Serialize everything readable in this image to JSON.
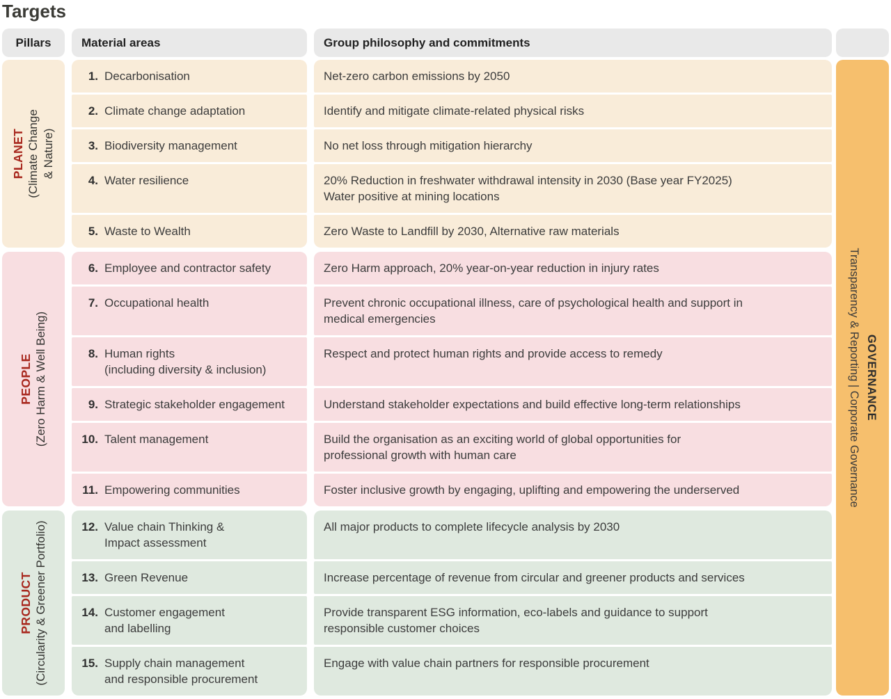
{
  "title": "Targets",
  "headers": {
    "pillars": "Pillars",
    "materials": "Material areas",
    "commitments": "Group philosophy and commitments"
  },
  "governance": {
    "title": "GOVERNANCE",
    "subtitle": "Transparency & Reporting  |  Corporate Governance"
  },
  "colors": {
    "planet": "#F9ECD9",
    "people": "#F8DEE1",
    "product": "#DFE9DF",
    "governance": "#F6BF6D",
    "header_gray": "#E9E9E9",
    "pillar_name_red": "#A8281E",
    "body_text": "#3C3C3C"
  },
  "pillars": [
    {
      "name": "PLANET",
      "subtitle": "(Climate Change\n& Nature)",
      "theme": "planet",
      "rows": [
        {
          "num": "1.",
          "area": "Decarbonisation",
          "commitment": "Net-zero carbon emissions by 2050"
        },
        {
          "num": "2.",
          "area": "Climate change adaptation",
          "commitment": "Identify and mitigate climate-related physical risks"
        },
        {
          "num": "3.",
          "area": "Biodiversity management",
          "commitment": "No net loss through mitigation hierarchy"
        },
        {
          "num": "4.",
          "area": "Water resilience",
          "commitment": "20% Reduction in freshwater withdrawal intensity in 2030 (Base year FY2025)\nWater positive at mining locations"
        },
        {
          "num": "5.",
          "area": "Waste to Wealth",
          "commitment": "Zero Waste to Landfill by 2030, Alternative raw materials"
        }
      ]
    },
    {
      "name": "PEOPLE",
      "subtitle": "(Zero Harm & Well Being)",
      "theme": "people",
      "rows": [
        {
          "num": "6.",
          "area": "Employee and contractor safety",
          "commitment": "Zero Harm approach, 20% year-on-year reduction in injury rates"
        },
        {
          "num": "7.",
          "area": "Occupational health",
          "commitment": "Prevent chronic occupational illness, care of psychological health and support in\nmedical emergencies"
        },
        {
          "num": "8.",
          "area": "Human rights\n(including diversity & inclusion)",
          "commitment": "Respect and protect human rights and provide access to remedy"
        },
        {
          "num": "9.",
          "area": "Strategic stakeholder engagement",
          "commitment": "Understand stakeholder expectations and build effective long-term relationships"
        },
        {
          "num": "10.",
          "area": "Talent management",
          "commitment": "Build the organisation as an exciting world of global opportunities for\nprofessional growth with human care"
        },
        {
          "num": "11.",
          "area": "Empowering communities",
          "commitment": "Foster inclusive growth by engaging, uplifting and empowering the underserved"
        }
      ]
    },
    {
      "name": "PRODUCT",
      "subtitle": "(Circularity & Greener Portfolio)",
      "theme": "product",
      "rows": [
        {
          "num": "12.",
          "area": "Value chain Thinking &\nImpact assessment",
          "commitment": "All major products to complete lifecycle analysis by 2030"
        },
        {
          "num": "13.",
          "area": "Green Revenue",
          "commitment": "Increase percentage of revenue from circular and greener products and services"
        },
        {
          "num": "14.",
          "area": "Customer engagement\nand labelling",
          "commitment": "Provide transparent ESG information, eco-labels and guidance to support\nresponsible customer choices"
        },
        {
          "num": "15.",
          "area": "Supply chain management\nand responsible procurement",
          "commitment": "Engage with value chain partners for responsible procurement"
        }
      ]
    }
  ]
}
